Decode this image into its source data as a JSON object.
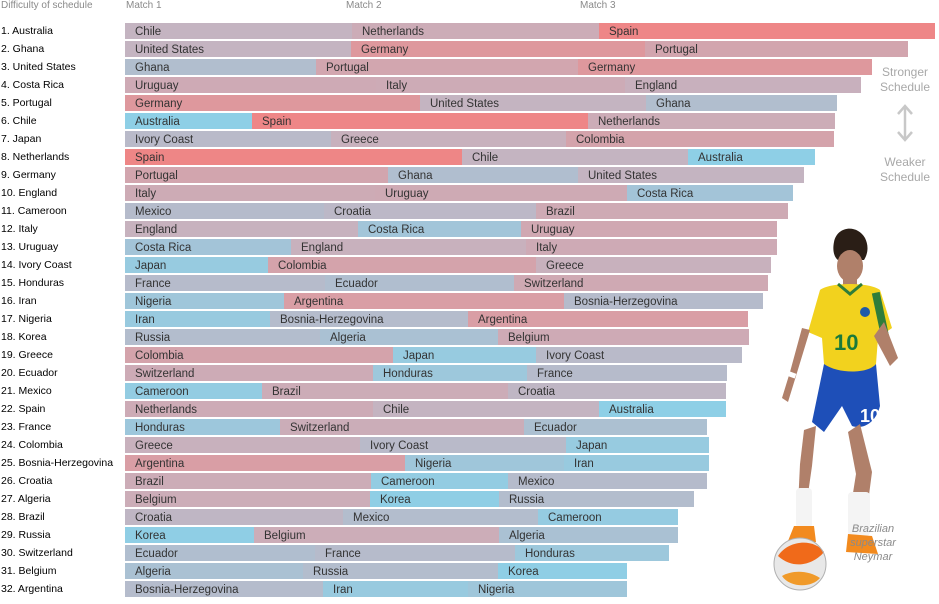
{
  "header": {
    "difficulty_label": "Difficulty of schedule",
    "match1_label": "Match 1",
    "match2_label": "Match 2",
    "match3_label": "Match 3"
  },
  "side_scale": {
    "stronger": [
      "Stronger",
      "Schedule"
    ],
    "weaker": [
      "Weaker",
      "Schedule"
    ]
  },
  "caption": [
    "Brazilian",
    "superstar",
    "Neymar"
  ],
  "colors": {
    "strong": "#ee8686",
    "weak": "#8ecfe6",
    "mid": "#c6b3c0",
    "row_label": "#000000",
    "bar_label": "#333333"
  },
  "chart_data": {
    "type": "bar",
    "stacked": true,
    "orientation": "horizontal",
    "rows": [
      {
        "rank": "1.",
        "team": "Australia",
        "opponents": [
          {
            "name": "Chile",
            "value": 227
          },
          {
            "name": "Netherlands",
            "value": 247
          },
          {
            "name": "Spain",
            "value": 336
          }
        ]
      },
      {
        "rank": "2.",
        "team": "Ghana",
        "opponents": [
          {
            "name": "United States",
            "value": 226
          },
          {
            "name": "Germany",
            "value": 294
          },
          {
            "name": "Portugal",
            "value": 263
          }
        ]
      },
      {
        "rank": "3.",
        "team": "United States",
        "opponents": [
          {
            "name": "Ghana",
            "value": 191
          },
          {
            "name": "Portugal",
            "value": 262
          },
          {
            "name": "Germany",
            "value": 294
          }
        ]
      },
      {
        "rank": "4.",
        "team": "Costa Rica",
        "opponents": [
          {
            "name": "Uruguay",
            "value": 251
          },
          {
            "name": "Italy",
            "value": 249
          },
          {
            "name": "England",
            "value": 236
          }
        ]
      },
      {
        "rank": "5.",
        "team": "Portugal",
        "opponents": [
          {
            "name": "Germany",
            "value": 295
          },
          {
            "name": "United States",
            "value": 226
          },
          {
            "name": "Ghana",
            "value": 191
          }
        ]
      },
      {
        "rank": "6.",
        "team": "Chile",
        "opponents": [
          {
            "name": "Australia",
            "value": 127
          },
          {
            "name": "Spain",
            "value": 336
          },
          {
            "name": "Netherlands",
            "value": 247
          }
        ]
      },
      {
        "rank": "7.",
        "team": "Japan",
        "opponents": [
          {
            "name": "Ivory Coast",
            "value": 206
          },
          {
            "name": "Greece",
            "value": 235
          },
          {
            "name": "Colombia",
            "value": 268
          }
        ]
      },
      {
        "rank": "8.",
        "team": "Netherlands",
        "opponents": [
          {
            "name": "Spain",
            "value": 337
          },
          {
            "name": "Chile",
            "value": 226
          },
          {
            "name": "Australia",
            "value": 127
          }
        ]
      },
      {
        "rank": "9.",
        "team": "Germany",
        "opponents": [
          {
            "name": "Portugal",
            "value": 263
          },
          {
            "name": "Ghana",
            "value": 190
          },
          {
            "name": "United States",
            "value": 226
          }
        ]
      },
      {
        "rank": "10.",
        "team": "England",
        "opponents": [
          {
            "name": "Italy",
            "value": 250
          },
          {
            "name": "Uruguay",
            "value": 252
          },
          {
            "name": "Costa Rica",
            "value": 166
          }
        ]
      },
      {
        "rank": "11.",
        "team": "Cameroon",
        "opponents": [
          {
            "name": "Mexico",
            "value": 199
          },
          {
            "name": "Croatia",
            "value": 212
          },
          {
            "name": "Brazil",
            "value": 252
          }
        ]
      },
      {
        "rank": "12.",
        "team": "Italy",
        "opponents": [
          {
            "name": "England",
            "value": 233
          },
          {
            "name": "Costa Rica",
            "value": 163
          },
          {
            "name": "Uruguay",
            "value": 256
          }
        ]
      },
      {
        "rank": "13.",
        "team": "Uruguay",
        "opponents": [
          {
            "name": "Costa Rica",
            "value": 166
          },
          {
            "name": "England",
            "value": 235
          },
          {
            "name": "Italy",
            "value": 251
          }
        ]
      },
      {
        "rank": "14.",
        "team": "Ivory Coast",
        "opponents": [
          {
            "name": "Japan",
            "value": 143
          },
          {
            "name": "Colombia",
            "value": 268
          },
          {
            "name": "Greece",
            "value": 235
          }
        ]
      },
      {
        "rank": "15.",
        "team": "Honduras",
        "opponents": [
          {
            "name": "France",
            "value": 200
          },
          {
            "name": "Ecuador",
            "value": 189
          },
          {
            "name": "Switzerland",
            "value": 254
          }
        ]
      },
      {
        "rank": "16.",
        "team": "Iran",
        "opponents": [
          {
            "name": "Nigeria",
            "value": 159
          },
          {
            "name": "Argentina",
            "value": 280
          },
          {
            "name": "Bosnia-Herzegovina",
            "value": 199
          }
        ]
      },
      {
        "rank": "17.",
        "team": "Nigeria",
        "opponents": [
          {
            "name": "Iran",
            "value": 145
          },
          {
            "name": "Bosnia-Herzegovina",
            "value": 198
          },
          {
            "name": "Argentina",
            "value": 280
          }
        ]
      },
      {
        "rank": "18.",
        "team": "Korea",
        "opponents": [
          {
            "name": "Russia",
            "value": 195
          },
          {
            "name": "Algeria",
            "value": 178
          },
          {
            "name": "Belgium",
            "value": 251
          }
        ]
      },
      {
        "rank": "19.",
        "team": "Greece",
        "opponents": [
          {
            "name": "Colombia",
            "value": 268
          },
          {
            "name": "Japan",
            "value": 143
          },
          {
            "name": "Ivory Coast",
            "value": 206
          }
        ]
      },
      {
        "rank": "20.",
        "team": "Ecuador",
        "opponents": [
          {
            "name": "Switzerland",
            "value": 248
          },
          {
            "name": "Honduras",
            "value": 154
          },
          {
            "name": "France",
            "value": 200
          }
        ]
      },
      {
        "rank": "21.",
        "team": "Mexico",
        "opponents": [
          {
            "name": "Cameroon",
            "value": 137
          },
          {
            "name": "Brazil",
            "value": 246
          },
          {
            "name": "Croatia",
            "value": 218
          }
        ]
      },
      {
        "rank": "22.",
        "team": "Spain",
        "opponents": [
          {
            "name": "Netherlands",
            "value": 248
          },
          {
            "name": "Chile",
            "value": 226
          },
          {
            "name": "Australia",
            "value": 127
          }
        ]
      },
      {
        "rank": "23.",
        "team": "France",
        "opponents": [
          {
            "name": "Honduras",
            "value": 155
          },
          {
            "name": "Switzerland",
            "value": 244
          },
          {
            "name": "Ecuador",
            "value": 183
          }
        ]
      },
      {
        "rank": "24.",
        "team": "Colombia",
        "opponents": [
          {
            "name": "Greece",
            "value": 235
          },
          {
            "name": "Ivory Coast",
            "value": 206
          },
          {
            "name": "Japan",
            "value": 143
          }
        ]
      },
      {
        "rank": "25.",
        "team": "Bosnia-Herzegovina",
        "opponents": [
          {
            "name": "Argentina",
            "value": 280
          },
          {
            "name": "Nigeria",
            "value": 159
          },
          {
            "name": "Iran",
            "value": 145
          }
        ]
      },
      {
        "rank": "26.",
        "team": "Croatia",
        "opponents": [
          {
            "name": "Brazil",
            "value": 246
          },
          {
            "name": "Cameroon",
            "value": 137
          },
          {
            "name": "Mexico",
            "value": 199
          }
        ]
      },
      {
        "rank": "27.",
        "team": "Algeria",
        "opponents": [
          {
            "name": "Belgium",
            "value": 245
          },
          {
            "name": "Korea",
            "value": 129
          },
          {
            "name": "Russia",
            "value": 195
          }
        ]
      },
      {
        "rank": "28.",
        "team": "Brazil",
        "opponents": [
          {
            "name": "Croatia",
            "value": 218
          },
          {
            "name": "Mexico",
            "value": 195
          },
          {
            "name": "Cameroon",
            "value": 140
          }
        ]
      },
      {
        "rank": "29.",
        "team": "Russia",
        "opponents": [
          {
            "name": "Korea",
            "value": 129
          },
          {
            "name": "Belgium",
            "value": 245
          },
          {
            "name": "Algeria",
            "value": 179
          }
        ]
      },
      {
        "rank": "30.",
        "team": "Switzerland",
        "opponents": [
          {
            "name": "Ecuador",
            "value": 190
          },
          {
            "name": "France",
            "value": 200
          },
          {
            "name": "Honduras",
            "value": 154
          }
        ]
      },
      {
        "rank": "31.",
        "team": "Belgium",
        "opponents": [
          {
            "name": "Algeria",
            "value": 178
          },
          {
            "name": "Russia",
            "value": 195
          },
          {
            "name": "Korea",
            "value": 129
          }
        ]
      },
      {
        "rank": "32.",
        "team": "Argentina",
        "opponents": [
          {
            "name": "Bosnia-Herzegovina",
            "value": 198
          },
          {
            "name": "Iran",
            "value": 145
          },
          {
            "name": "Nigeria",
            "value": 159
          }
        ]
      }
    ],
    "grid": false,
    "legend": "none"
  }
}
